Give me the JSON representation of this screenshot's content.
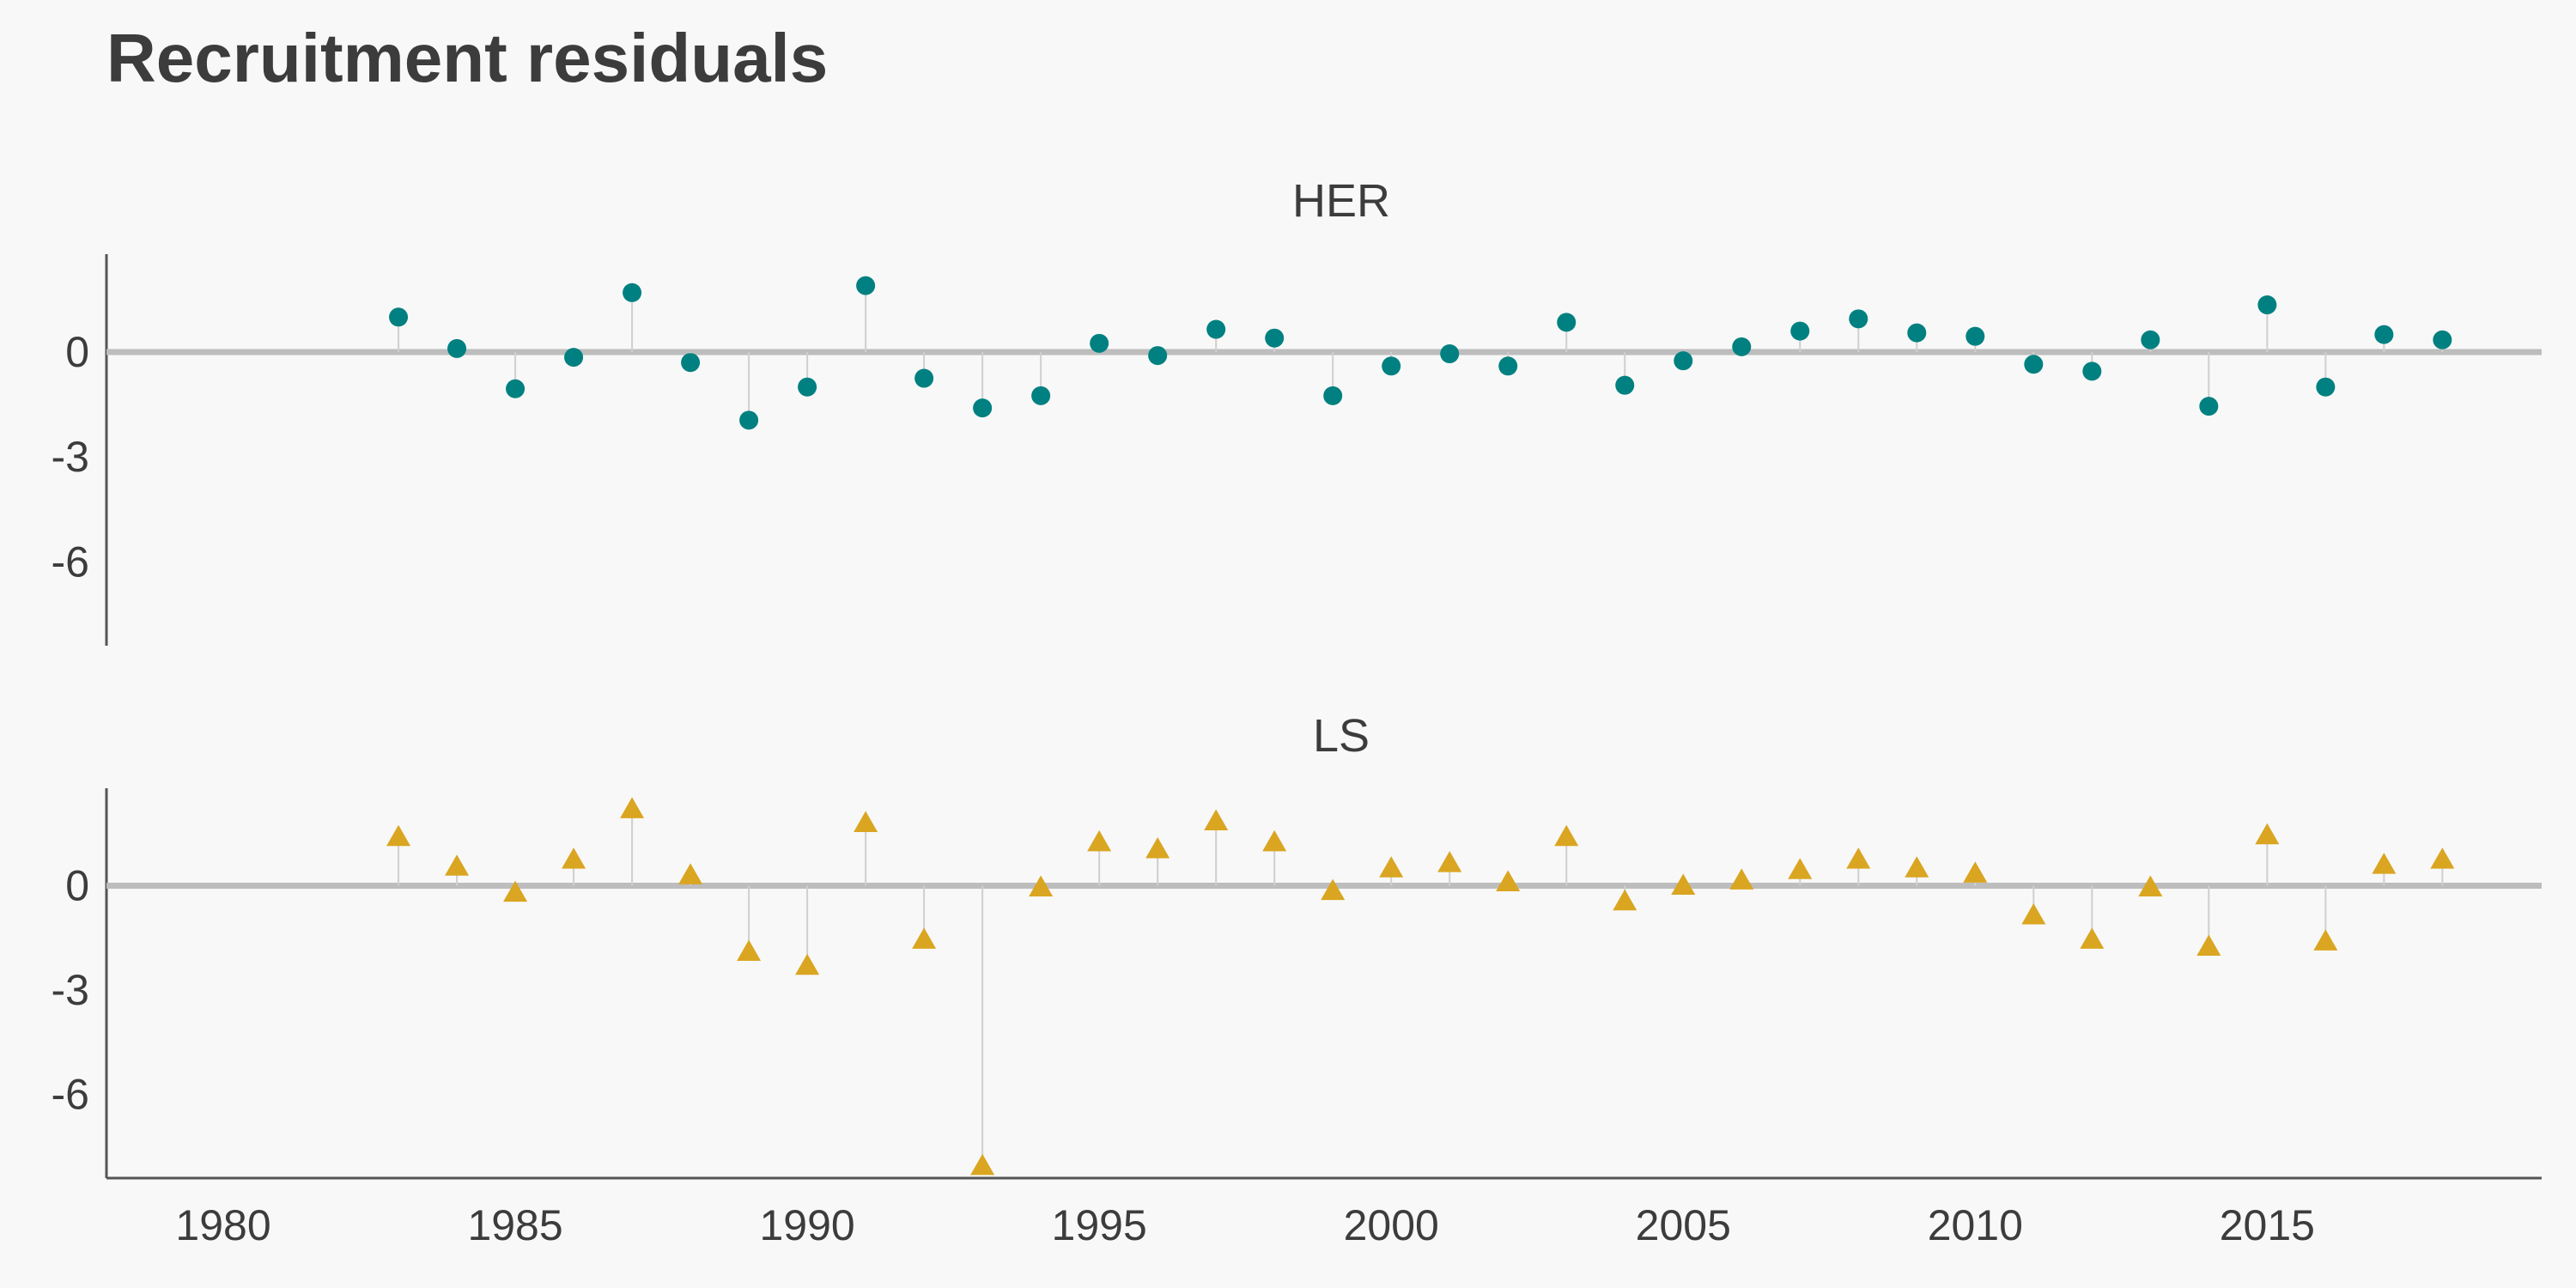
{
  "title": "Recruitment residuals",
  "chart_data": {
    "type": "scatter",
    "title": "Recruitment residuals",
    "x_ticks": [
      1980,
      1985,
      1990,
      1995,
      2000,
      2005,
      2010,
      2015
    ],
    "xlim": [
      1978,
      2019.7
    ],
    "ylim": [
      -8.4,
      2.8
    ],
    "y_ticks": [
      0,
      -3,
      -6
    ],
    "y_tick_labels": [
      "0",
      "-3",
      "-6"
    ],
    "reference_line": 0,
    "grid": false,
    "panels": [
      {
        "name": "HER",
        "marker": "circle",
        "color": "#008080",
        "x": [
          1983,
          1984,
          1985,
          1986,
          1987,
          1988,
          1989,
          1990,
          1991,
          1992,
          1993,
          1994,
          1995,
          1996,
          1997,
          1998,
          1999,
          2000,
          2001,
          2002,
          2003,
          2004,
          2005,
          2006,
          2007,
          2008,
          2009,
          2010,
          2011,
          2012,
          2013,
          2014,
          2015,
          2016,
          2017,
          2018
        ],
        "y": [
          1.0,
          0.1,
          -1.05,
          -0.15,
          1.7,
          -0.3,
          -1.95,
          -1.0,
          1.9,
          -0.75,
          -1.6,
          -1.25,
          0.25,
          -0.1,
          0.65,
          0.4,
          -1.25,
          -0.4,
          -0.05,
          -0.4,
          0.85,
          -0.95,
          -0.25,
          0.15,
          0.6,
          0.95,
          0.55,
          0.45,
          -0.35,
          -0.55,
          0.35,
          -1.55,
          1.35,
          -1.0,
          0.5,
          0.35
        ]
      },
      {
        "name": "LS",
        "marker": "triangle",
        "color": "#DAA520",
        "x": [
          1983,
          1984,
          1985,
          1986,
          1987,
          1988,
          1989,
          1990,
          1991,
          1992,
          1993,
          1994,
          1995,
          1996,
          1997,
          1998,
          1999,
          2000,
          2001,
          2002,
          2003,
          2004,
          2005,
          2006,
          2007,
          2008,
          2009,
          2010,
          2011,
          2012,
          2013,
          2014,
          2015,
          2016,
          2017,
          2018
        ],
        "y": [
          1.4,
          0.55,
          -0.2,
          0.75,
          2.2,
          0.3,
          -1.9,
          -2.3,
          1.8,
          -1.55,
          -8.05,
          -0.05,
          1.25,
          1.05,
          1.85,
          1.25,
          -0.15,
          0.5,
          0.65,
          0.1,
          1.4,
          -0.45,
          0.0,
          0.15,
          0.45,
          0.75,
          0.5,
          0.35,
          -0.85,
          -1.55,
          -0.05,
          -1.75,
          1.45,
          -1.6,
          0.6,
          0.75
        ]
      }
    ]
  }
}
